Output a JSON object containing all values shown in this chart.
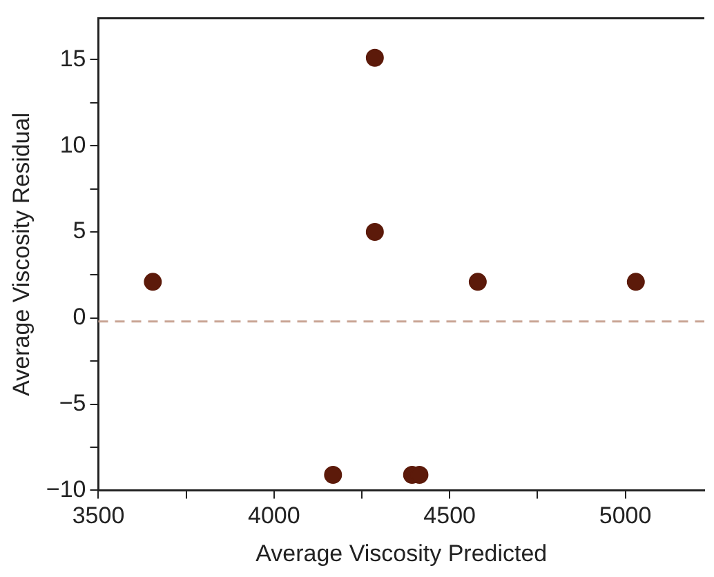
{
  "chart_data": {
    "type": "scatter",
    "xlabel": "Average Viscosity Predicted",
    "ylabel": "Average Viscosity Residual",
    "x": [
      3655,
      4287,
      4287,
      4580,
      5030,
      4168,
      4393,
      4414
    ],
    "values": [
      2.1,
      15.1,
      5,
      2.1,
      2.1,
      -9.1,
      -9.1,
      -9.1
    ],
    "color": "#5c1a0a",
    "marker": "circle",
    "xlim": [
      3500,
      5225
    ],
    "ylim": [
      -10,
      17.4
    ],
    "xticks": [
      3500,
      {
        "value": 3750,
        "label": null
      },
      4000,
      {
        "value": 4250,
        "label": null
      },
      4500,
      {
        "value": 4750,
        "label": null
      },
      5000
    ],
    "yticks": [
      -10,
      {
        "value": -7.5,
        "label": null
      },
      -5,
      {
        "value": -2.5,
        "label": null
      },
      0,
      {
        "value": 2.5,
        "label": null
      },
      5,
      {
        "value": 7.5,
        "label": null
      },
      10,
      {
        "value": 12.5,
        "label": null
      },
      15
    ],
    "ref_lines": [
      {
        "axis": "y",
        "value": -0.2,
        "color": "#c9a595",
        "line_style": "dashed"
      }
    ],
    "grid": false,
    "legend": false
  }
}
